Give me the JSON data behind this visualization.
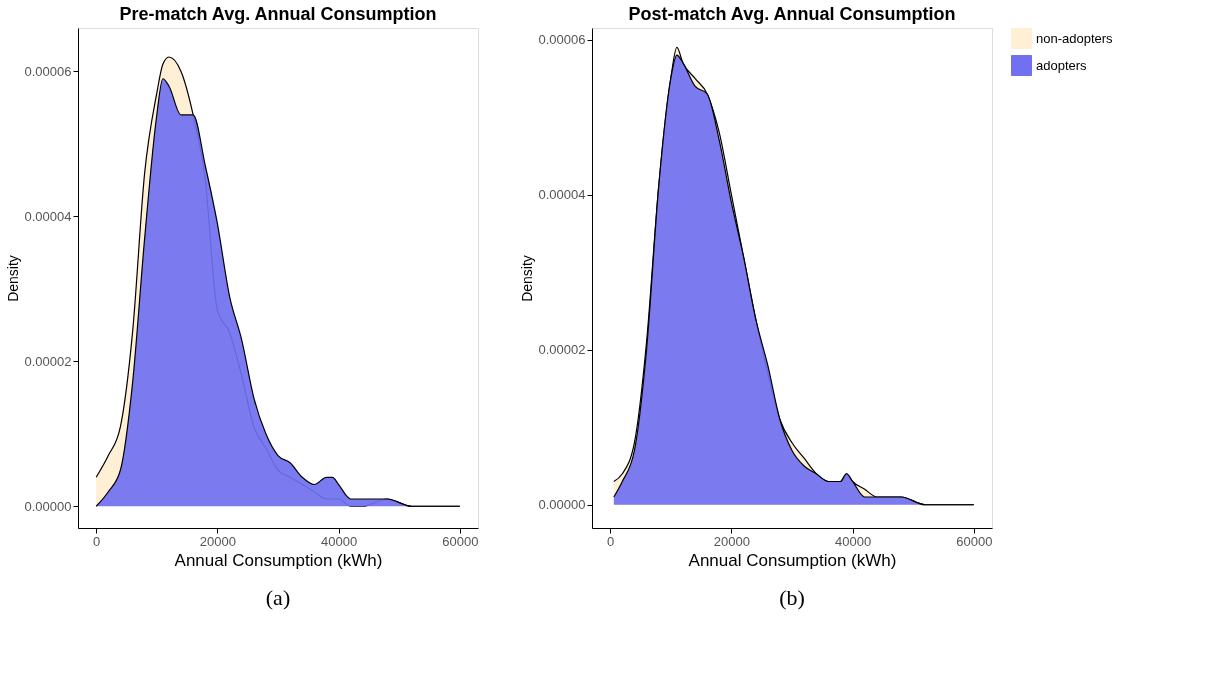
{
  "chart_data": [
    {
      "type": "area",
      "title": "Pre-match Avg. Annual Consumption",
      "xlabel": "Annual Consumption (kWh)",
      "ylabel": "Density",
      "x": [
        0,
        2000,
        4000,
        6000,
        8000,
        10000,
        11000,
        12000,
        14000,
        16000,
        18000,
        20000,
        22000,
        24000,
        26000,
        28000,
        30000,
        32000,
        34000,
        36000,
        38000,
        39000,
        40000,
        42000,
        44000,
        48000,
        52000,
        56000,
        60000
      ],
      "series": [
        {
          "name": "non-adopters",
          "color": "#ffefd5",
          "values": [
            4e-06,
            7e-06,
            1.1e-05,
            2.4e-05,
            4.6e-05,
            5.7e-05,
            6.1e-05,
            6.2e-05,
            6e-05,
            5.4e-05,
            4.5e-05,
            2.7e-05,
            2.4e-05,
            1.8e-05,
            1.1e-05,
            8e-06,
            5e-06,
            4e-06,
            3e-06,
            2e-06,
            1e-06,
            1e-06,
            1e-06,
            0.0,
            0.0,
            1e-06,
            0.0,
            0.0,
            0.0
          ]
        },
        {
          "name": "adopters",
          "color": "#7070f0",
          "values": [
            0.0,
            2e-06,
            5e-06,
            1.7e-05,
            3.7e-05,
            5.4e-05,
            5.9e-05,
            5.8e-05,
            5.4e-05,
            5.4e-05,
            4.7e-05,
            3.9e-05,
            2.9e-05,
            2.3e-05,
            1.5e-05,
            1e-05,
            7e-06,
            6e-06,
            4e-06,
            3e-06,
            4e-06,
            4e-06,
            3e-06,
            1e-06,
            1e-06,
            1e-06,
            0.0,
            0.0,
            0.0
          ]
        }
      ],
      "xlim": [
        -3000,
        63000
      ],
      "xticks": [
        0,
        20000,
        40000,
        60000
      ],
      "ylim": [
        -3e-06,
        6.6e-05
      ],
      "yticks": [
        {
          "value": 0,
          "label": "0.00000"
        },
        {
          "value": 2e-05,
          "label": "0.00002"
        },
        {
          "value": 4e-05,
          "label": "0.00004"
        },
        {
          "value": 6e-05,
          "label": "0.00006"
        }
      ],
      "grid": false,
      "legend": "right",
      "annotations": [
        "(a)"
      ]
    },
    {
      "type": "area",
      "title": "Post-match Avg. Annual Consumption",
      "xlabel": "Annual Consumption (kWh)",
      "ylabel": "Density",
      "x": [
        600,
        2000,
        4000,
        6000,
        8000,
        10000,
        11000,
        12000,
        14000,
        16000,
        18000,
        20000,
        22000,
        24000,
        26000,
        28000,
        30000,
        32000,
        34000,
        36000,
        38000,
        39000,
        40000,
        42000,
        44000,
        48000,
        52000,
        56000,
        60000
      ],
      "series": [
        {
          "name": "non-adopters",
          "color": "#ffefd5",
          "values": [
            3e-06,
            4e-06,
            8e-06,
            2.1e-05,
            4.1e-05,
            5.5e-05,
            5.9e-05,
            5.7e-05,
            5.5e-05,
            5.3e-05,
            4.8e-05,
            4e-05,
            3.2e-05,
            2.4e-05,
            1.7e-05,
            1.1e-05,
            8e-06,
            6e-06,
            4e-06,
            3e-06,
            3e-06,
            4e-06,
            3e-06,
            2e-06,
            1e-06,
            1e-06,
            0.0,
            0.0,
            0.0
          ]
        },
        {
          "name": "adopters",
          "color": "#7070f0",
          "values": [
            1e-06,
            3e-06,
            7e-06,
            2e-05,
            4.1e-05,
            5.5e-05,
            5.8e-05,
            5.7e-05,
            5.4e-05,
            5.3e-05,
            4.7e-05,
            3.9e-05,
            3.2e-05,
            2.4e-05,
            1.8e-05,
            1.1e-05,
            7e-06,
            5e-06,
            4e-06,
            3e-06,
            3e-06,
            4e-06,
            3e-06,
            1e-06,
            1e-06,
            1e-06,
            0.0,
            0.0,
            0.0
          ]
        }
      ],
      "xlim": [
        -3000,
        63000
      ],
      "xticks": [
        0,
        20000,
        40000,
        60000
      ],
      "ylim": [
        -3e-06,
        6.15e-05
      ],
      "yticks": [
        {
          "value": 0,
          "label": "0.00000"
        },
        {
          "value": 2e-05,
          "label": "0.00002"
        },
        {
          "value": 4e-05,
          "label": "0.00004"
        },
        {
          "value": 6e-05,
          "label": "0.00006"
        }
      ],
      "grid": false,
      "legend": "right",
      "annotations": [
        "(b)"
      ]
    }
  ]
}
